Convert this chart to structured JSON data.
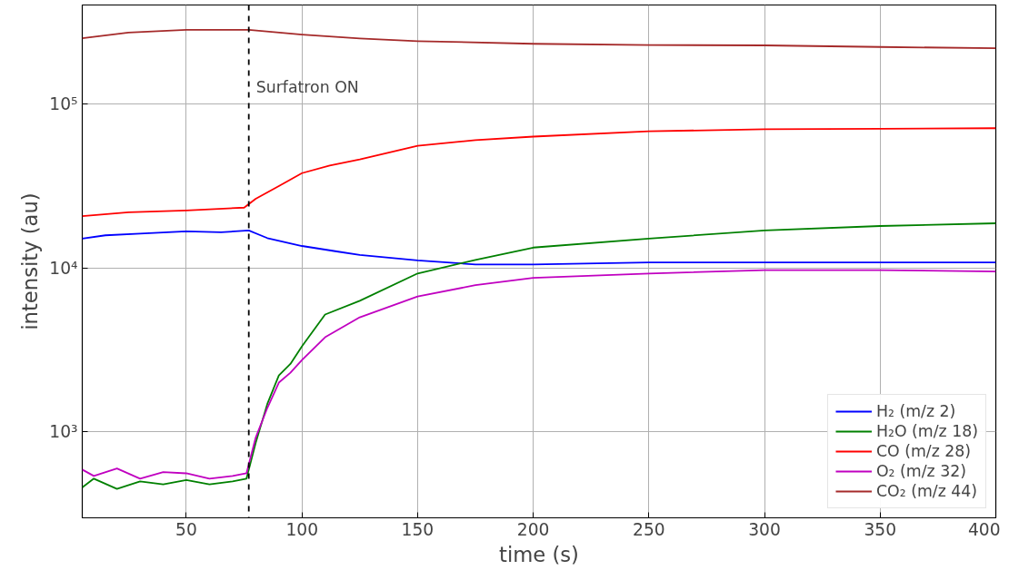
{
  "chart_data": {
    "type": "line",
    "xlabel": "time (s)",
    "ylabel": "intensity (au)",
    "xlim": [
      5,
      400
    ],
    "xticks": [
      50,
      100,
      150,
      200,
      250,
      300,
      350,
      400
    ],
    "ylim": [
      300,
      400000
    ],
    "yticks": [
      {
        "value": 1000,
        "label": "10³"
      },
      {
        "value": 10000,
        "label": "10⁴"
      },
      {
        "value": 100000,
        "label": "10⁵"
      }
    ],
    "log": "y",
    "grid": true,
    "legend": "bottom right",
    "line_style": "solid",
    "ref_lines": [
      {
        "axis": "x",
        "value": 77,
        "label": "Surfatron ON",
        "color": "#000000",
        "line_style": "dashed"
      }
    ],
    "series": [
      {
        "name": "H₂ (m/z 2)",
        "color": "#0000ff",
        "x": [
          5,
          15,
          30,
          50,
          65,
          77,
          85,
          100,
          115,
          125,
          150,
          175,
          200,
          250,
          300,
          350,
          400
        ],
        "values": [
          15100,
          15800,
          16200,
          16700,
          16500,
          16900,
          15200,
          13600,
          12600,
          12000,
          11100,
          10500,
          10500,
          10800,
          10800,
          10800,
          10800
        ]
      },
      {
        "name": "H₂O (m/z 18)",
        "color": "#008000",
        "x": [
          5,
          10,
          20,
          30,
          40,
          50,
          60,
          70,
          76,
          80,
          85,
          90,
          95,
          100,
          110,
          125,
          150,
          175,
          200,
          250,
          300,
          350,
          400
        ],
        "values": [
          460,
          520,
          450,
          500,
          480,
          510,
          480,
          500,
          520,
          860,
          1480,
          2210,
          2600,
          3330,
          5200,
          6300,
          9250,
          11200,
          13300,
          15100,
          16900,
          18000,
          18700
        ]
      },
      {
        "name": "CO (m/z 28)",
        "color": "#ff0000",
        "x": [
          5,
          25,
          50,
          75,
          80,
          90,
          100,
          112,
          125,
          150,
          175,
          200,
          250,
          300,
          350,
          400
        ],
        "values": [
          20700,
          21800,
          22400,
          23300,
          26400,
          31500,
          37800,
          42000,
          45800,
          55500,
          60000,
          63100,
          68000,
          70000,
          70500,
          71000
        ]
      },
      {
        "name": "O₂ (m/z 32)",
        "color": "#c000c0",
        "x": [
          5,
          10,
          20,
          30,
          40,
          50,
          60,
          70,
          76,
          80,
          85,
          90,
          95,
          100,
          110,
          125,
          150,
          175,
          200,
          250,
          300,
          350,
          400
        ],
        "values": [
          590,
          540,
          600,
          520,
          570,
          560,
          520,
          540,
          560,
          925,
          1400,
          2000,
          2300,
          2750,
          3780,
          5000,
          6700,
          7850,
          8700,
          9250,
          9700,
          9700,
          9500
        ]
      },
      {
        "name": "CO₂ (m/z 44)",
        "color": "#a52a2a",
        "x": [
          5,
          25,
          50,
          77,
          100,
          125,
          150,
          200,
          250,
          300,
          350,
          400
        ],
        "values": [
          251000,
          272000,
          282000,
          282000,
          264000,
          250000,
          241000,
          232000,
          228000,
          227000,
          222000,
          218000
        ]
      }
    ]
  }
}
